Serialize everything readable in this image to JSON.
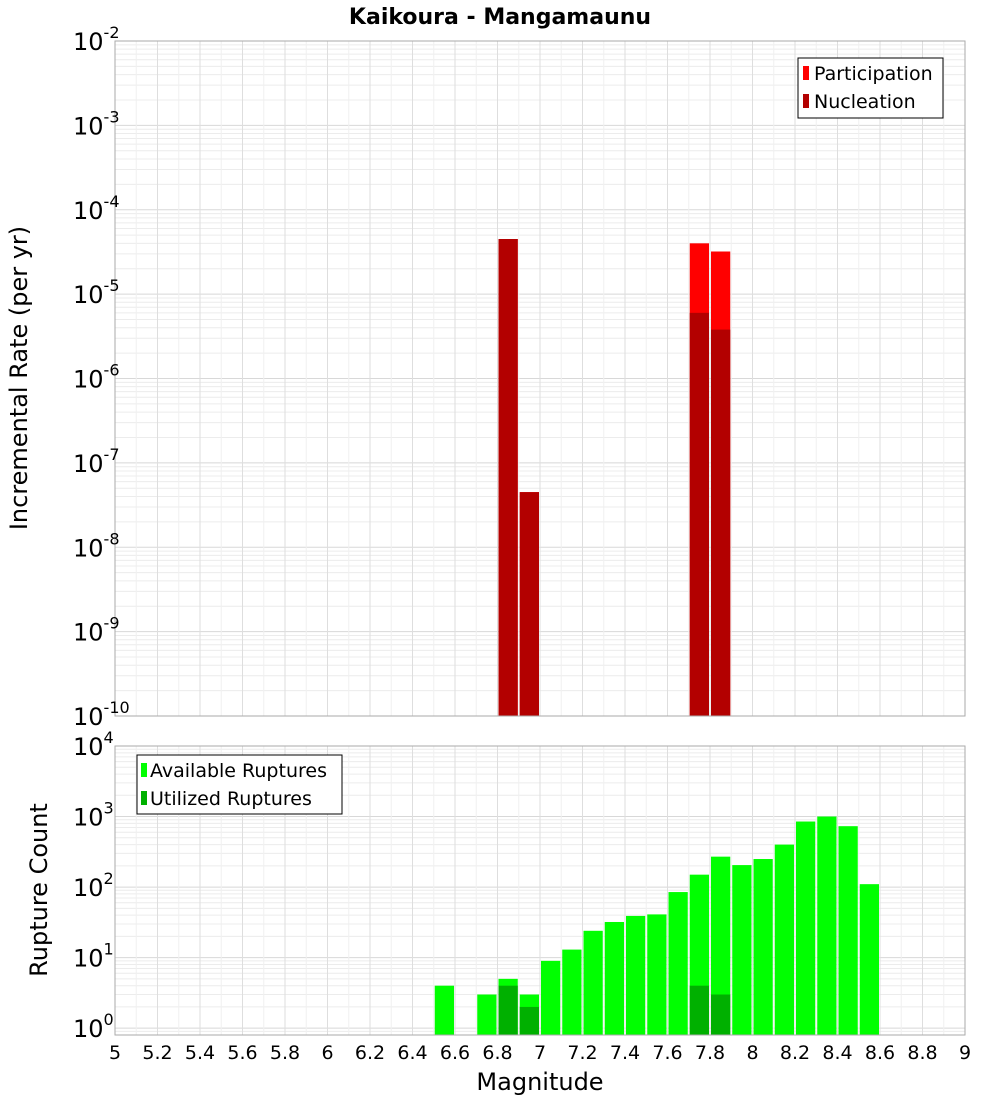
{
  "chart_data": [
    {
      "type": "bar",
      "title": "Kaikoura - Mangamaunu",
      "xlabel": "",
      "ylabel": "Incremental Rate (per yr)",
      "yscale": "log",
      "ylim": [
        1e-10,
        0.01
      ],
      "xlim": [
        5,
        9
      ],
      "grid": true,
      "legend_position": "top-right",
      "bin_width": 0.1,
      "series": [
        {
          "name": "Participation",
          "color": "#ff0000",
          "x": [
            6.85,
            6.95,
            7.75,
            7.85
          ],
          "values": [
            4.5e-05,
            4.5e-08,
            4e-05,
            3.2e-05
          ]
        },
        {
          "name": "Nucleation",
          "color": "#b30000",
          "x": [
            6.85,
            6.95,
            7.75,
            7.85
          ],
          "values": [
            4.5e-05,
            4.5e-08,
            6e-06,
            3.8e-06
          ]
        }
      ]
    },
    {
      "type": "bar",
      "title": "",
      "xlabel": "Magnitude",
      "ylabel": "Rupture Count",
      "yscale": "log",
      "ylim": [
        0.8,
        10000
      ],
      "xlim": [
        5,
        9
      ],
      "grid": true,
      "legend_position": "top-left",
      "bin_width": 0.1,
      "series": [
        {
          "name": "Available Ruptures",
          "color": "#00ff00",
          "x": [
            6.55,
            6.75,
            6.85,
            6.95,
            7.05,
            7.15,
            7.25,
            7.35,
            7.45,
            7.55,
            7.65,
            7.75,
            7.85,
            7.95,
            8.05,
            8.15,
            8.25,
            8.35,
            8.45,
            8.55
          ],
          "values": [
            4,
            3,
            5,
            3,
            9,
            13,
            24,
            32,
            39,
            41,
            85,
            150,
            270,
            205,
            250,
            400,
            850,
            1000,
            730,
            110
          ]
        },
        {
          "name": "Utilized Ruptures",
          "color": "#00b000",
          "x": [
            6.85,
            6.95,
            7.75,
            7.85
          ],
          "values": [
            4,
            2,
            4,
            3
          ]
        }
      ]
    }
  ],
  "x_ticks": [
    "5",
    "5.2",
    "5.4",
    "5.6",
    "5.8",
    "6",
    "6.2",
    "6.4",
    "6.6",
    "6.8",
    "7",
    "7.2",
    "7.4",
    "7.6",
    "7.8",
    "8",
    "8.2",
    "8.4",
    "8.6",
    "8.8",
    "9"
  ],
  "top_y_ticks": [
    {
      "base": "10",
      "exp": "-2"
    },
    {
      "base": "10",
      "exp": "-3"
    },
    {
      "base": "10",
      "exp": "-4"
    },
    {
      "base": "10",
      "exp": "-5"
    },
    {
      "base": "10",
      "exp": "-6"
    },
    {
      "base": "10",
      "exp": "-7"
    },
    {
      "base": "10",
      "exp": "-8"
    },
    {
      "base": "10",
      "exp": "-9"
    },
    {
      "base": "10",
      "exp": "-10"
    }
  ],
  "bottom_y_ticks": [
    {
      "base": "10",
      "exp": "4"
    },
    {
      "base": "10",
      "exp": "3"
    },
    {
      "base": "10",
      "exp": "2"
    },
    {
      "base": "10",
      "exp": "1"
    },
    {
      "base": "10",
      "exp": "0"
    }
  ]
}
